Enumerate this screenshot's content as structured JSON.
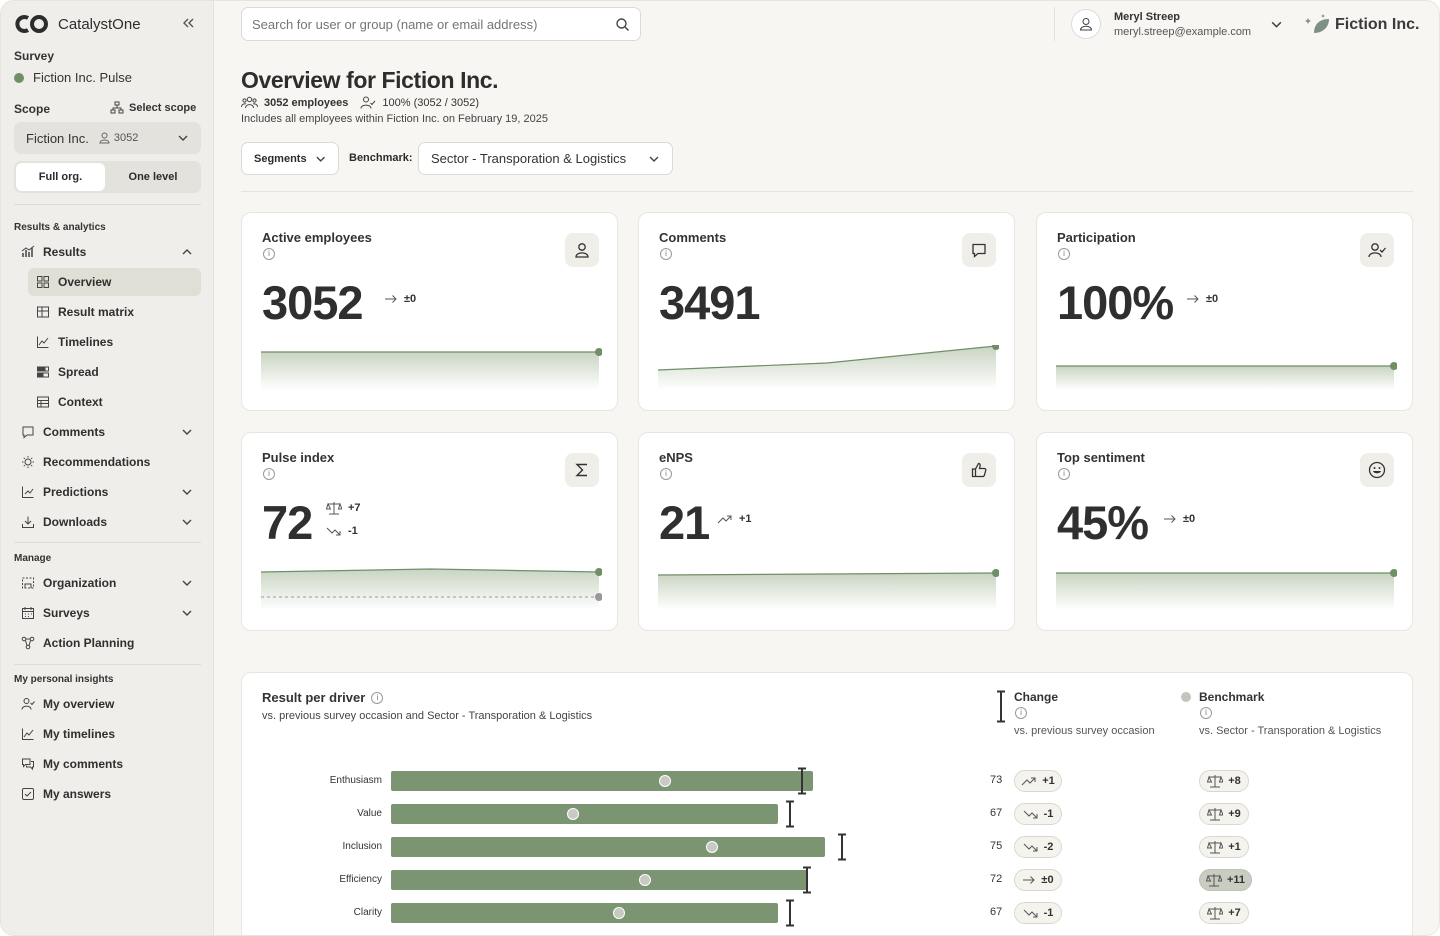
{
  "app": {
    "name": "CatalystOne",
    "collapse_icon": "chevrons-left-icon"
  },
  "survey": {
    "label": "Survey",
    "name": "Fiction Inc. Pulse"
  },
  "scope": {
    "label": "Scope",
    "select_label": "Select scope",
    "org": "Fiction Inc.",
    "count": "3052",
    "toggle": {
      "full": "Full org.",
      "one": "One level",
      "selected": "full"
    }
  },
  "nav": {
    "section_results": "Results & analytics",
    "results": "Results",
    "results_sub": [
      "Overview",
      "Result matrix",
      "Timelines",
      "Spread",
      "Context"
    ],
    "comments": "Comments",
    "recommendations": "Recommendations",
    "predictions": "Predictions",
    "downloads": "Downloads",
    "section_manage": "Manage",
    "organization": "Organization",
    "surveys": "Surveys",
    "action_planning": "Action Planning",
    "section_personal": "My personal insights",
    "my_overview": "My overview",
    "my_timelines": "My timelines",
    "my_comments": "My comments",
    "my_answers": "My answers"
  },
  "header": {
    "search_placeholder": "Search for user or group (name or email address)",
    "user_name": "Meryl Streep",
    "user_email": "meryl.streep@example.com",
    "company": "Fiction Inc."
  },
  "page": {
    "title": "Overview for Fiction Inc.",
    "employees": "3052 employees",
    "participation": "100% (3052 / 3052)",
    "includes": "Includes all employees within Fiction Inc. on February 19, 2025",
    "segments_label": "Segments",
    "benchmark_label": "Benchmark:",
    "benchmark_value": "Sector - Transporation & Logistics"
  },
  "kpis": [
    {
      "title": "Active employees",
      "value": "3052",
      "change": "±0",
      "icon": "user-icon"
    },
    {
      "title": "Comments",
      "value": "3491",
      "change": "",
      "icon": "comment-icon"
    },
    {
      "title": "Participation",
      "value": "100%",
      "change": "±0",
      "icon": "user-check-icon"
    },
    {
      "title": "Pulse index",
      "value": "72",
      "benchmark_change": "+7",
      "change": "-1",
      "icon": "sigma-icon"
    },
    {
      "title": "eNPS",
      "value": "21",
      "change": "+1",
      "icon": "thumbs-up-icon"
    },
    {
      "title": "Top sentiment",
      "value": "45%",
      "change": "±0",
      "icon": "smile-icon"
    }
  ],
  "drivers": {
    "title": "Result per driver",
    "subtitle": "vs. previous survey occasion and Sector - Transporation & Logistics",
    "change_label": "Change",
    "change_sub": "vs. previous survey occasion",
    "benchmark_label": "Benchmark",
    "benchmark_sub": "vs. Sector - Transporation & Logistics",
    "rows": [
      {
        "name": "Enthusiasm",
        "value": 73,
        "change": "+1",
        "trend": "up",
        "benchmark": "+8",
        "bench_pos": 0.65,
        "prev": 72,
        "highlight": false
      },
      {
        "name": "Value",
        "value": 67,
        "change": "-1",
        "trend": "down",
        "benchmark": "+9",
        "bench_pos": 0.47,
        "prev": 68,
        "highlight": false
      },
      {
        "name": "Inclusion",
        "value": 75,
        "change": "-2",
        "trend": "down",
        "benchmark": "+1",
        "bench_pos": 0.74,
        "prev": 77,
        "highlight": false
      },
      {
        "name": "Efficiency",
        "value": 72,
        "change": "±0",
        "trend": "flat",
        "benchmark": "+11",
        "bench_pos": 0.61,
        "prev": 72,
        "highlight": true
      },
      {
        "name": "Clarity",
        "value": 67,
        "change": "-1",
        "trend": "down",
        "benchmark": "+7",
        "bench_pos": 0.59,
        "prev": 68,
        "highlight": false
      }
    ]
  },
  "colors": {
    "accent": "#6f8f66",
    "bar": "#7b9572",
    "sidebar": "#efeeea",
    "background": "#f7f6f3"
  }
}
